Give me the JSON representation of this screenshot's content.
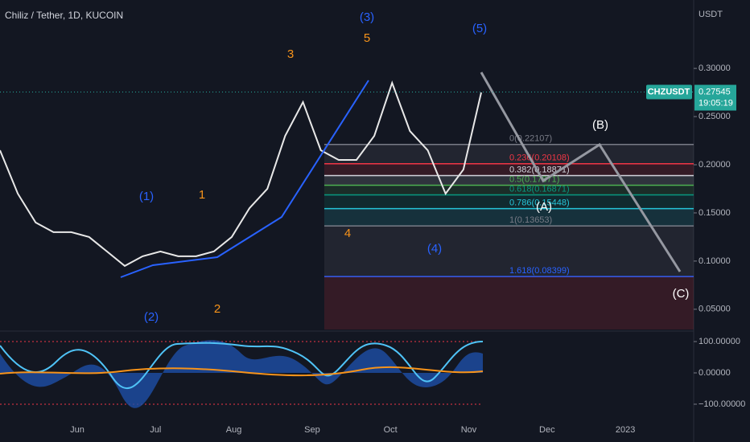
{
  "chart_data": {
    "type": "line",
    "title": "Chiliz / Tether, 1D, KUCOIN",
    "y_unit": "USDT",
    "symbol": "CHZUSDT",
    "last_price": 0.27545,
    "last_price_label": "0.27545",
    "countdown": "19:05:19",
    "series": [
      {
        "name": "CHZUSDT",
        "color": "#e8e8e8",
        "values": [
          0.215,
          0.17,
          0.14,
          0.13,
          0.13,
          0.125,
          0.11,
          0.095,
          0.105,
          0.11,
          0.105,
          0.105,
          0.11,
          0.125,
          0.155,
          0.175,
          0.23,
          0.265,
          0.215,
          0.205,
          0.205,
          0.23,
          0.285,
          0.235,
          0.215,
          0.17,
          0.195,
          0.275
        ]
      }
    ],
    "ylim": [
      0.029,
      0.371
    ],
    "yticks": [
      {
        "value": 0.3,
        "label": "0.30000"
      },
      {
        "value": 0.25,
        "label": "0.25000"
      },
      {
        "value": 0.2,
        "label": "0.20000"
      },
      {
        "value": 0.15,
        "label": "0.15000"
      },
      {
        "value": 0.1,
        "label": "0.10000"
      },
      {
        "value": 0.05,
        "label": "0.05000"
      }
    ],
    "time_labels": [
      "Jun",
      "Jul",
      "Aug",
      "Sep",
      "Oct",
      "Nov",
      "Dec",
      "2023"
    ],
    "fib_levels": [
      {
        "value": 0.22107,
        "label": "0(0.22107)",
        "color": "#787b86"
      },
      {
        "value": 0.20108,
        "label": "0.236(0.20108)",
        "color": "#f23645"
      },
      {
        "value": 0.18871,
        "label": "0.382(0.18871)",
        "color": "#d1d4dc"
      },
      {
        "value": 0.17871,
        "label": "0.5(0.17871)",
        "color": "#4caf50"
      },
      {
        "value": 0.16871,
        "label": "0.618(0.16871)",
        "color": "#089981"
      },
      {
        "value": 0.15448,
        "label": "0.786(0.15448)",
        "color": "#26c6da"
      },
      {
        "value": 0.13653,
        "label": "1(0.13653)",
        "color": "#787b86"
      },
      {
        "value": 0.08399,
        "label": "1.618(0.08399)",
        "color": "#2962ff"
      }
    ],
    "osc_ylim": [
      -118,
      118
    ],
    "osc_ticks": [
      {
        "value": 100,
        "label": "100.00000"
      },
      {
        "value": 0,
        "label": "0.00000"
      },
      {
        "value": -100,
        "label": "−100.00000"
      }
    ],
    "waves": {
      "w1": "(1)",
      "w2": "(2)",
      "w3": "(3)",
      "w4": "(4)",
      "w5": "(5)",
      "s1": "1",
      "s2": "2",
      "s3": "3",
      "s4": "4",
      "s5": "5",
      "a": "(A)",
      "b": "(B)",
      "c": "(C)"
    }
  }
}
